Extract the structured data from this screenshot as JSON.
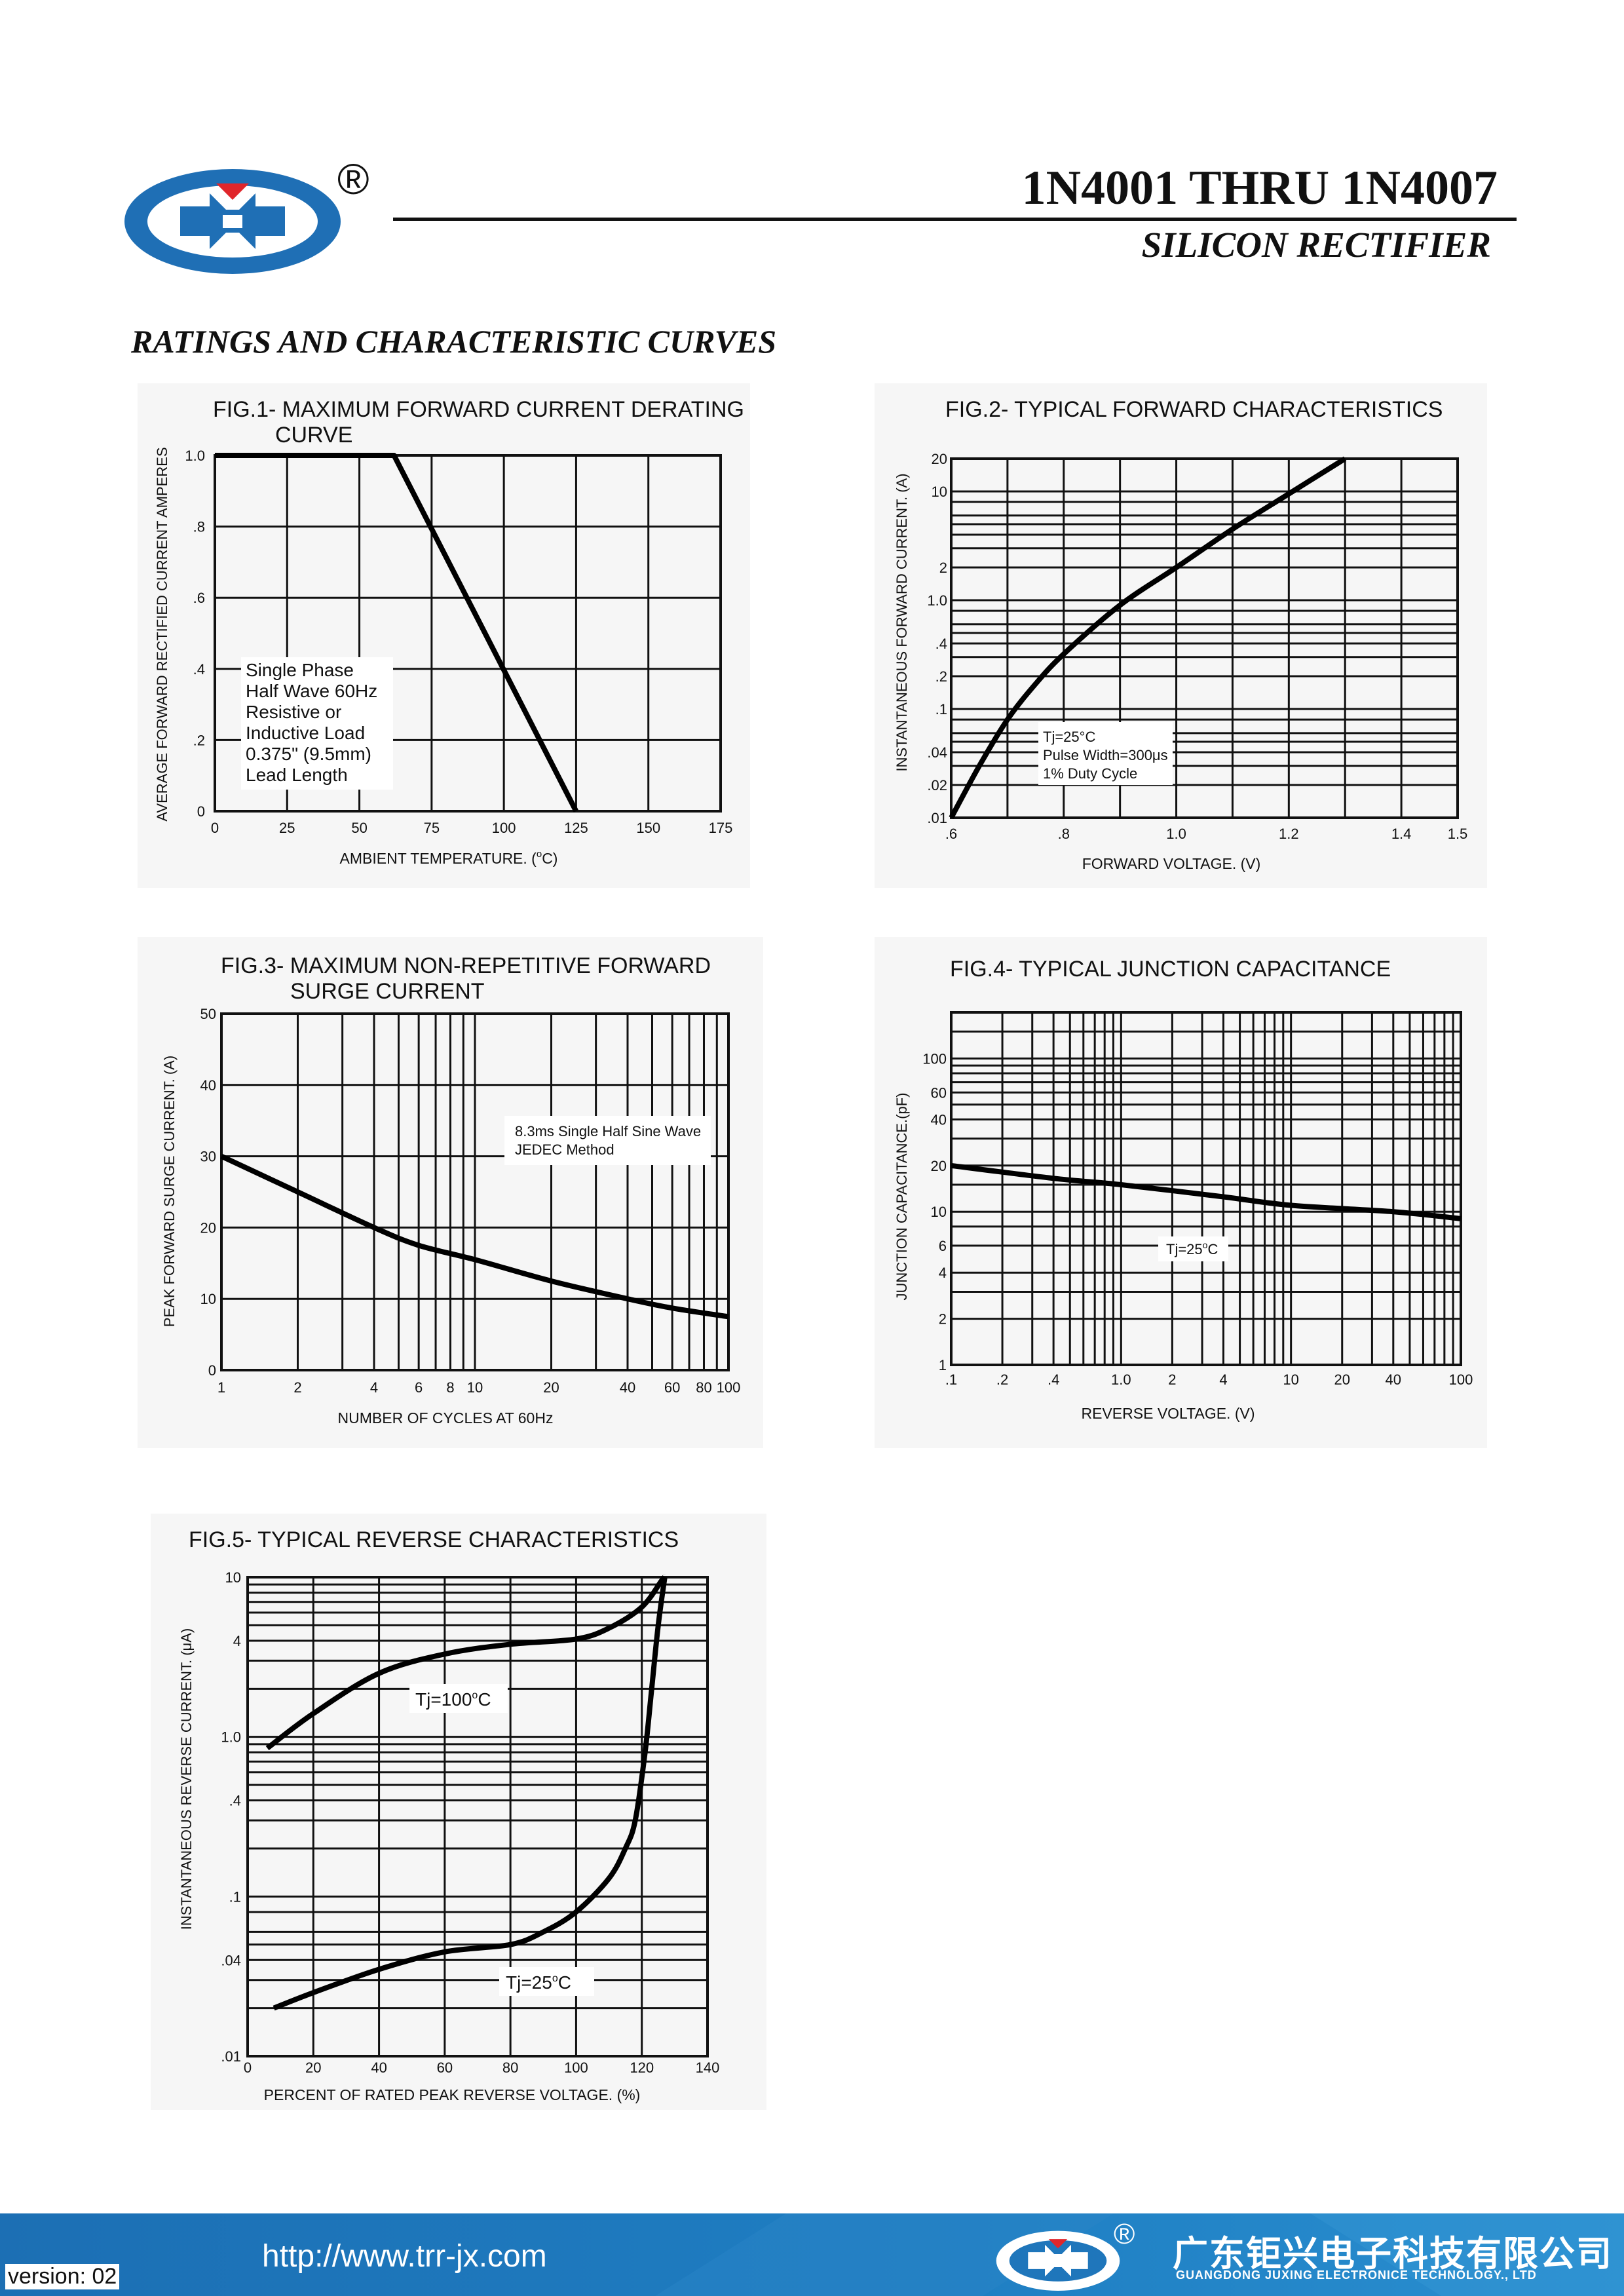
{
  "header": {
    "registered_mark": "®",
    "part_title": "1N4001 THRU 1N4007",
    "part_subtitle": "SILICON RECTIFIER",
    "logo_icon": "juxing-logo-icon",
    "brand_colors": {
      "blue": "#1f6fb5",
      "red": "#e0262b"
    }
  },
  "section_heading": "RATINGS AND CHARACTERISTIC CURVES",
  "figures": {
    "fig1": {
      "title_line1": "FIG.1- MAXIMUM FORWARD CURRENT DERATING",
      "title_line2": "CURVE",
      "ylabel": "AVERAGE FORWARD RECTIFIED CURRENT AMPERES",
      "xlabel": "AMBIENT TEMPERATURE. (",
      "xlabel_unit": "C)",
      "xlabel_degree": "o",
      "note": [
        "Single Phase",
        "Half Wave 60Hz",
        "Resistive or",
        "Inductive Load",
        "0.375\" (9.5mm)",
        "Lead Length"
      ]
    },
    "fig2": {
      "title": "FIG.2- TYPICAL FORWARD CHARACTERISTICS",
      "ylabel": "INSTANTANEOUS FORWARD CURRENT. (A)",
      "xlabel": "FORWARD VOLTAGE. (V)",
      "note": [
        "Tj=25°C",
        "Pulse Width=300μs",
        "1% Duty Cycle"
      ]
    },
    "fig3": {
      "title_line1": "FIG.3- MAXIMUM NON-REPETITIVE FORWARD",
      "title_line2": "SURGE CURRENT",
      "ylabel": "PEAK FORWARD SURGE CURRENT. (A)",
      "xlabel": "NUMBER OF CYCLES AT 60Hz",
      "note": [
        "8.3ms Single Half Sine Wave",
        "JEDEC Method"
      ]
    },
    "fig4": {
      "title": "FIG.4- TYPICAL JUNCTION CAPACITANCE",
      "ylabel": "JUNCTION CAPACITANCE.(pF)",
      "xlabel": "REVERSE VOLTAGE. (V)",
      "note": "Tj=25",
      "note_degree": "o",
      "note_unit": "C"
    },
    "fig5": {
      "title": "FIG.5- TYPICAL REVERSE CHARACTERISTICS",
      "ylabel": "INSTANTANEOUS REVERSE CURRENT. (μA)",
      "xlabel": "PERCENT OF RATED PEAK REVERSE VOLTAGE. (%)",
      "label_100": "Tj=100",
      "label_25": "Tj=25",
      "label_degree": "o",
      "label_unit": "C"
    }
  },
  "chart_data": [
    {
      "id": "fig1",
      "type": "line",
      "title": "FIG.1- MAXIMUM FORWARD CURRENT DERATING CURVE",
      "xlabel": "AMBIENT TEMPERATURE. (°C)",
      "ylabel": "AVERAGE FORWARD RECTIFIED CURRENT AMPERES",
      "xlim": [
        0,
        175
      ],
      "ylim": [
        0,
        1.0
      ],
      "x_ticks": [
        0,
        25,
        50,
        75,
        100,
        125,
        150,
        175
      ],
      "x_tick_labels": [
        "0",
        "25",
        "50",
        "75",
        "100",
        "125",
        "150",
        "175"
      ],
      "y_ticks": [
        0,
        0.2,
        0.4,
        0.6,
        0.8,
        1.0
      ],
      "y_tick_labels": [
        "0",
        ".2",
        ".4",
        ".6",
        ".8",
        "1.0"
      ],
      "grid": true,
      "series": [
        {
          "x": [
            0,
            62,
            125
          ],
          "y": [
            1.0,
            1.0,
            0
          ]
        }
      ]
    },
    {
      "id": "fig2",
      "type": "line",
      "title": "FIG.2- TYPICAL FORWARD CHARACTERISTICS",
      "xlabel": "FORWARD VOLTAGE. (V)",
      "ylabel": "INSTANTANEOUS FORWARD CURRENT. (A)",
      "xlim": [
        0.6,
        1.5
      ],
      "ylim": [
        0.01,
        20
      ],
      "y_scale": "log",
      "x_ticks": [
        0.6,
        0.8,
        1.0,
        1.2,
        1.4,
        1.5
      ],
      "x_tick_labels": [
        ".6",
        ".8",
        "1.0",
        "1.2",
        "1.4",
        "1.5"
      ],
      "y_ticks": [
        0.01,
        0.02,
        0.04,
        0.1,
        0.2,
        0.4,
        1.0,
        2,
        10,
        20
      ],
      "y_tick_labels": [
        ".01",
        ".02",
        ".04",
        ".1",
        ".2",
        ".4",
        "1.0",
        "2",
        "10",
        "20"
      ],
      "grid": true,
      "series": [
        {
          "x": [
            0.6,
            0.65,
            0.7,
            0.75,
            0.8,
            0.9,
            1.0,
            1.1,
            1.2,
            1.3
          ],
          "y": [
            0.01,
            0.03,
            0.08,
            0.17,
            0.32,
            0.9,
            2.0,
            4.5,
            9.5,
            20
          ]
        }
      ]
    },
    {
      "id": "fig3",
      "type": "line",
      "title": "FIG.3- MAXIMUM NON-REPETITIVE FORWARD SURGE CURRENT",
      "xlabel": "NUMBER OF CYCLES AT 60Hz",
      "ylabel": "PEAK FORWARD SURGE CURRENT. (A)",
      "xlim": [
        1,
        100
      ],
      "ylim": [
        0,
        50
      ],
      "x_scale": "log",
      "x_ticks": [
        1,
        2,
        4,
        6,
        8,
        10,
        20,
        40,
        60,
        80,
        100
      ],
      "x_tick_labels": [
        "1",
        "2",
        "4",
        "6",
        "8",
        "10",
        "20",
        "40",
        "60",
        "80",
        "100"
      ],
      "y_ticks": [
        0,
        10,
        20,
        30,
        40,
        50
      ],
      "y_tick_labels": [
        "0",
        "10",
        "20",
        "30",
        "40",
        "50"
      ],
      "grid": true,
      "series": [
        {
          "x": [
            1,
            2,
            4,
            6,
            10,
            20,
            40,
            60,
            100
          ],
          "y": [
            30,
            25,
            20,
            17.5,
            15.5,
            12.5,
            10,
            8.7,
            7.5
          ]
        }
      ]
    },
    {
      "id": "fig4",
      "type": "line",
      "title": "FIG.4- TYPICAL JUNCTION CAPACITANCE",
      "xlabel": "REVERSE VOLTAGE. (V)",
      "ylabel": "JUNCTION CAPACITANCE.(pF)",
      "xlim": [
        0.1,
        100
      ],
      "ylim": [
        1,
        200
      ],
      "x_scale": "log",
      "y_scale": "log",
      "x_ticks": [
        0.1,
        0.2,
        0.4,
        1.0,
        2,
        4,
        10,
        20,
        40,
        100
      ],
      "x_tick_labels": [
        ".1",
        ".2",
        ".4",
        "1.0",
        "2",
        "4",
        "10",
        "20",
        "40",
        "100"
      ],
      "y_ticks": [
        1,
        2,
        4,
        6,
        10,
        20,
        40,
        60,
        100
      ],
      "y_tick_labels": [
        "1",
        "2",
        "4",
        "6",
        "10",
        "20",
        "40",
        "60",
        "100"
      ],
      "grid": true,
      "series": [
        {
          "x": [
            0.1,
            0.4,
            1.0,
            4,
            10,
            40,
            100
          ],
          "y": [
            20,
            16.5,
            15,
            12.5,
            11,
            10,
            9
          ]
        }
      ]
    },
    {
      "id": "fig5",
      "type": "line",
      "title": "FIG.5- TYPICAL REVERSE CHARACTERISTICS",
      "xlabel": "PERCENT OF RATED PEAK REVERSE VOLTAGE. (%)",
      "ylabel": "INSTANTANEOUS REVERSE CURRENT. (μA)",
      "xlim": [
        0,
        140
      ],
      "ylim": [
        0.01,
        10
      ],
      "y_scale": "log",
      "x_ticks": [
        0,
        20,
        40,
        60,
        80,
        100,
        120,
        140
      ],
      "x_tick_labels": [
        "0",
        "20",
        "40",
        "60",
        "80",
        "100",
        "120",
        "140"
      ],
      "y_ticks": [
        0.01,
        0.04,
        0.1,
        0.4,
        1.0,
        4,
        10
      ],
      "y_tick_labels": [
        ".01",
        ".04",
        ".1",
        ".4",
        "1.0",
        "4",
        "10"
      ],
      "grid": true,
      "series": [
        {
          "name": "Tj=100°C",
          "x": [
            6,
            20,
            40,
            60,
            80,
            100,
            110,
            120,
            126,
            127
          ],
          "y": [
            0.85,
            1.4,
            2.5,
            3.3,
            3.8,
            4.1,
            4.8,
            6.5,
            9.5,
            10
          ]
        },
        {
          "name": "Tj=25°C",
          "x": [
            8,
            20,
            40,
            60,
            80,
            90,
            100,
            110,
            115,
            118,
            121,
            123,
            125,
            127
          ],
          "y": [
            0.02,
            0.025,
            0.035,
            0.045,
            0.05,
            0.06,
            0.08,
            0.13,
            0.2,
            0.3,
            0.8,
            2,
            5,
            10
          ]
        }
      ]
    }
  ],
  "footer": {
    "url": "http://www.trr-jx.com",
    "registered_mark": "®",
    "company_cn": "广东钜兴电子科技有限公司",
    "company_en": "GUANGDONG JUXING ELECTRONICE TECHNOLOGY., LTD",
    "version": "version: 02",
    "logo_icon": "juxing-logo-icon",
    "band_color": "#1c6fb4"
  }
}
